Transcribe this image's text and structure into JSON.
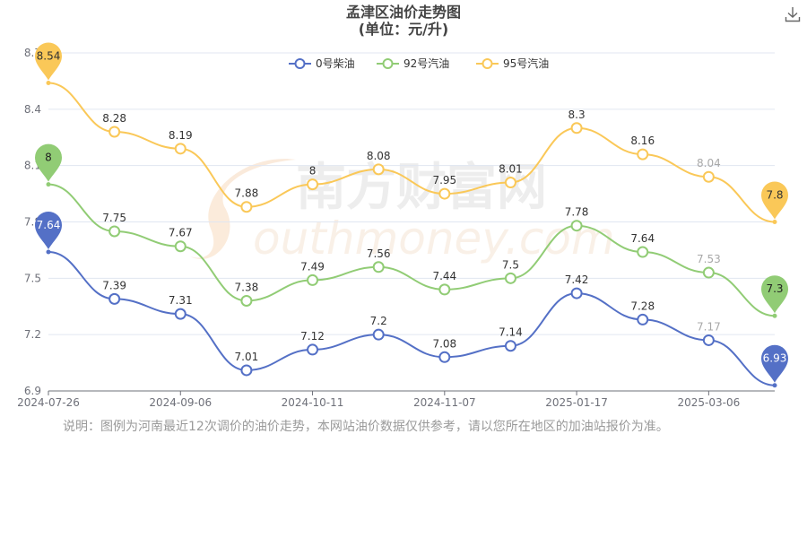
{
  "chart_data": {
    "type": "line",
    "title": "孟津区油价走势图",
    "subtitle": "(单位：元/升)",
    "x_ticks": [
      "2024-07-26",
      "2024-09-06",
      "2024-10-11",
      "2024-11-07",
      "2025-01-17",
      "2025-03-06"
    ],
    "y_ticks": [
      "6.9",
      "7.2",
      "7.5",
      "7.8",
      "8.1",
      "8.4",
      "8.7"
    ],
    "ylim": [
      6.9,
      8.7
    ],
    "legend_position": "top-center",
    "grid": true,
    "series": [
      {
        "name": "0号柴油",
        "color": "#5470c6",
        "values": [
          7.64,
          7.39,
          7.31,
          7.01,
          7.12,
          7.2,
          7.08,
          7.14,
          7.42,
          7.28,
          7.17,
          6.93
        ]
      },
      {
        "name": "92号汽油",
        "color": "#91cc75",
        "values": [
          8,
          7.75,
          7.67,
          7.38,
          7.49,
          7.56,
          7.44,
          7.5,
          7.78,
          7.64,
          7.53,
          7.3
        ]
      },
      {
        "name": "95号汽油",
        "color": "#fac858",
        "values": [
          8.54,
          8.28,
          8.19,
          7.88,
          8,
          8.08,
          7.95,
          8.01,
          8.3,
          8.16,
          8.04,
          7.8
        ]
      }
    ]
  },
  "watermark": {
    "text1": "南方财富网",
    "text2": "outhmoney.com"
  },
  "note": "说明：图例为河南最近12次调价的油价走势，本网站油价数据仅供参考，请以您所在地区的加油站报价为准。",
  "icons": {
    "download": "download-icon"
  }
}
